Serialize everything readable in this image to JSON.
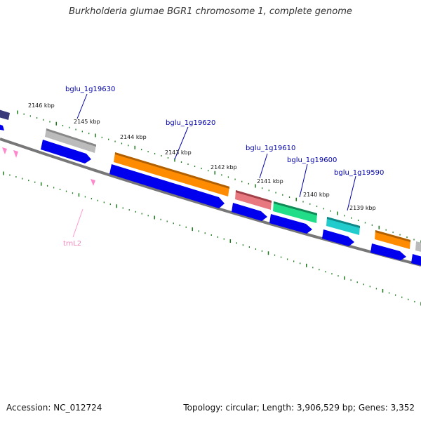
{
  "title": "Burkholderia glumae BGR1 chromosome 1, complete genome",
  "footer": {
    "accession": "Accession: NC_012724",
    "topology": "Topology: circular; Length: 3,906,529 bp; Genes: 3,352"
  },
  "colors": {
    "backbone": "#777777",
    "tick": "#1a7a1a",
    "cds_arrow": "#0000ee",
    "gene_label": "#0000aa",
    "trna_label": "#ee88bb"
  },
  "scale_labels": [
    "2146 kbp",
    "2145 kbp",
    "2144 kbp",
    "2143 kbp",
    "2142 kbp",
    "2141 kbp",
    "2140 kbp",
    "2139 kbp"
  ],
  "genes": [
    {
      "label": "bglu_1g19630",
      "color": "#bbbbbb"
    },
    {
      "label": "bglu_1g19620",
      "color": "#ff8c00"
    },
    {
      "label": "bglu_1g19610",
      "color": "#e87880"
    },
    {
      "label": "bglu_1g19600",
      "color": "#22dd88"
    },
    {
      "label": "bglu_1g19590",
      "color": "#22cccc"
    }
  ],
  "trna": {
    "label": "trnL2"
  }
}
